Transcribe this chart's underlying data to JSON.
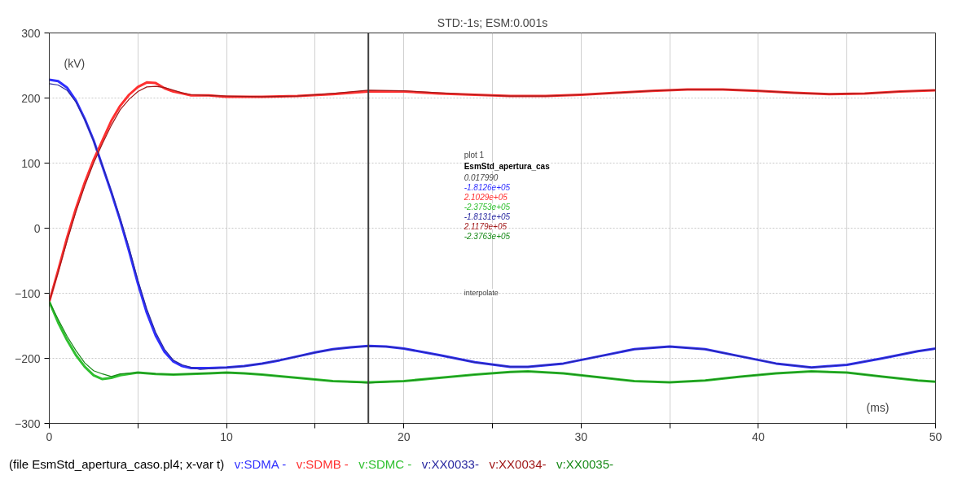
{
  "chart_data": {
    "type": "line",
    "title": "STD:-1s; ESM:0.001s",
    "xlabel": "(ms)",
    "ylabel": "(kV)",
    "legend_title": "(file EsmStd_apertura_caso.pl4; x-var t)",
    "legend": "bottom",
    "grid": true,
    "marker": "none",
    "line_style": "solid",
    "xlim": [
      0,
      50
    ],
    "ylim": [
      -300,
      300
    ],
    "xticks": [
      0,
      {
        "value": 5,
        "label": null
      },
      10,
      {
        "value": 15,
        "label": null
      },
      20,
      {
        "value": 25,
        "label": null
      },
      30,
      {
        "value": 35,
        "label": null
      },
      40,
      {
        "value": 45,
        "label": null
      },
      50
    ],
    "yticks": [
      -300,
      -200,
      -100,
      0,
      100,
      200,
      300
    ],
    "ref_lines": [
      {
        "axis": "x",
        "value": 18,
        "color": "#404040"
      }
    ],
    "annotations": [
      "plot 1",
      "EsmStd_apertura_cas",
      "0.017990",
      "-1.8126e+05",
      "2.1029e+05",
      "-2.3753e+05",
      "-1.8131e+05",
      "2.1179e+05",
      "-2.3763e+05",
      "interpolate"
    ],
    "series": [
      {
        "name": "v:SDMA -",
        "color": "#3030ff",
        "x": [
          0,
          0.5,
          1,
          1.5,
          2,
          2.5,
          3,
          3.5,
          4,
          4.5,
          5,
          5.5,
          6,
          6.5,
          7,
          7.5,
          8,
          9,
          10,
          11,
          12,
          13,
          14,
          15,
          16,
          17,
          18,
          19,
          20,
          22,
          24,
          26,
          27,
          29,
          31,
          33,
          35,
          37,
          39,
          41,
          43,
          45,
          47,
          49,
          50
        ],
        "values": [
          228,
          226,
          216,
          196,
          168,
          135,
          95,
          55,
          12,
          -35,
          -85,
          -130,
          -165,
          -190,
          -205,
          -212,
          -215,
          -215,
          -214,
          -212,
          -208,
          -203,
          -197,
          -191,
          -186,
          -183,
          -181,
          -182,
          -185,
          -195,
          -206,
          -213,
          -213,
          -208,
          -197,
          -186,
          -182,
          -186,
          -197,
          -208,
          -214,
          -210,
          -200,
          -189,
          -185
        ]
      },
      {
        "name": "v:SDMB -",
        "color": "#ff3030",
        "x": [
          0,
          0.5,
          1,
          1.5,
          2,
          2.5,
          3,
          3.5,
          4,
          4.5,
          5,
          5.5,
          6,
          6.5,
          7,
          7.5,
          8,
          9,
          10,
          12,
          14,
          16,
          18,
          20,
          22,
          24,
          26,
          28,
          30,
          32,
          34,
          36,
          38,
          40,
          42,
          44,
          46,
          48,
          50
        ],
        "values": [
          -113,
          -65,
          -15,
          30,
          70,
          105,
          135,
          165,
          188,
          205,
          217,
          224,
          223,
          215,
          210,
          207,
          204,
          204,
          202,
          202,
          203,
          206,
          210,
          210,
          207,
          205,
          203,
          203,
          205,
          208,
          211,
          213,
          213,
          211,
          208,
          206,
          207,
          210,
          212
        ]
      },
      {
        "name": "v:SDMC -",
        "color": "#30c030",
        "x": [
          0,
          0.5,
          1,
          1.5,
          2,
          2.5,
          3,
          3.5,
          4,
          5,
          6,
          7,
          8,
          9,
          10,
          11,
          12,
          14,
          16,
          18,
          20,
          22,
          24,
          26,
          27,
          29,
          31,
          33,
          35,
          37,
          39,
          41,
          43,
          45,
          47,
          49,
          50
        ],
        "values": [
          -113,
          -145,
          -172,
          -195,
          -213,
          -226,
          -232,
          -230,
          -226,
          -222,
          -224,
          -225,
          -224,
          -223,
          -222,
          -223,
          -225,
          -230,
          -235,
          -237,
          -235,
          -230,
          -225,
          -221,
          -220,
          -223,
          -229,
          -235,
          -237,
          -234,
          -228,
          -223,
          -220,
          -222,
          -228,
          -234,
          -236
        ]
      },
      {
        "name": "v:XX0033-",
        "color": "#2828a0",
        "x": [
          0,
          0.5,
          1,
          1.5,
          2,
          2.5,
          3,
          3.5,
          4,
          4.5,
          5,
          5.5,
          6,
          6.5,
          7,
          7.5,
          8,
          8.5,
          9,
          10,
          11,
          12,
          13,
          14,
          15,
          16,
          17,
          18,
          19,
          20,
          22,
          24,
          26,
          27,
          29,
          31,
          33,
          35,
          37,
          39,
          41,
          43,
          45,
          47,
          49,
          50
        ],
        "values": [
          222,
          220,
          212,
          194,
          167,
          134,
          96,
          57,
          15,
          -30,
          -80,
          -124,
          -160,
          -186,
          -203,
          -210,
          -214,
          -217,
          -216,
          -214,
          -212,
          -208,
          -203,
          -197,
          -191,
          -186,
          -183,
          -181,
          -182,
          -185,
          -195,
          -206,
          -213,
          -213,
          -208,
          -197,
          -186,
          -182,
          -186,
          -197,
          -208,
          -214,
          -210,
          -200,
          -189,
          -185
        ]
      },
      {
        "name": "v:XX0034-",
        "color": "#a01818",
        "x": [
          0,
          0.5,
          1,
          1.5,
          2,
          2.5,
          3,
          3.5,
          4,
          4.5,
          5,
          5.5,
          6,
          6.5,
          7,
          7.5,
          8,
          9,
          10,
          12,
          14,
          16,
          18,
          20,
          22,
          24,
          26,
          28,
          30,
          32,
          34,
          36,
          38,
          40,
          42,
          44,
          46,
          48,
          50
        ],
        "values": [
          -113,
          -68,
          -20,
          25,
          65,
          100,
          130,
          158,
          182,
          198,
          210,
          217,
          218,
          216,
          212,
          208,
          205,
          204,
          203,
          202,
          203,
          207,
          212,
          211,
          208,
          205,
          203,
          203,
          205,
          208,
          211,
          213,
          213,
          211,
          208,
          206,
          207,
          210,
          212
        ]
      },
      {
        "name": "v:XX0035-",
        "color": "#188a18",
        "x": [
          0,
          0.5,
          1,
          1.5,
          2,
          2.5,
          3,
          3.5,
          4,
          5,
          6,
          7,
          8,
          9,
          10,
          11,
          12,
          14,
          16,
          18,
          20,
          22,
          24,
          26,
          27,
          29,
          31,
          33,
          35,
          37,
          39,
          41,
          43,
          45,
          47,
          49,
          50
        ],
        "values": [
          -113,
          -140,
          -166,
          -188,
          -207,
          -219,
          -224,
          -228,
          -224,
          -222,
          -224,
          -225,
          -224,
          -223,
          -222,
          -223,
          -225,
          -230,
          -235,
          -238,
          -235,
          -230,
          -225,
          -221,
          -220,
          -223,
          -229,
          -235,
          -237,
          -234,
          -228,
          -223,
          -220,
          -222,
          -228,
          -234,
          -236
        ]
      }
    ]
  }
}
